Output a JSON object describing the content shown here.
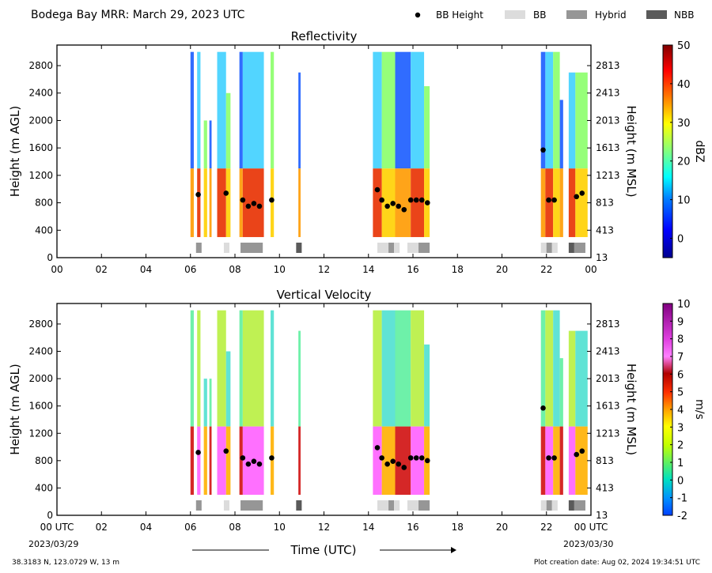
{
  "header": {
    "title": "Bodega Bay MRR:  March 29, 2023 UTC",
    "legend": [
      {
        "label": "BB Height",
        "kind": "dot",
        "color": "#000000"
      },
      {
        "label": "BB",
        "kind": "swatch",
        "color": "#dcdcdc"
      },
      {
        "label": "Hybrid",
        "kind": "swatch",
        "color": "#969696"
      },
      {
        "label": "NBB",
        "kind": "swatch",
        "color": "#5a5a5a"
      }
    ]
  },
  "footer": {
    "location": "38.3183 N, 123.0729 W, 13 m",
    "creation": "Plot creation date: Aug 02, 2024 19:34:51 UTC",
    "xtitle": "Time (UTC)",
    "date_start": "2023/03/29",
    "date_end": "2023/03/30"
  },
  "chart_data": [
    {
      "type": "heatmap",
      "title": "Reflectivity",
      "ylabel": "Height (m AGL)",
      "ylabel_right": "Height (m MSL)",
      "xlim": [
        0,
        24
      ],
      "ylim": [
        0,
        3100
      ],
      "x_ticks": [
        "00",
        "02",
        "04",
        "06",
        "08",
        "10",
        "12",
        "14",
        "16",
        "18",
        "20",
        "22",
        "00"
      ],
      "y_ticks": [
        0,
        400,
        800,
        1200,
        1600,
        2000,
        2400,
        2800
      ],
      "y_ticks_right": [
        13,
        413,
        813,
        1213,
        1613,
        2013,
        2413,
        2813
      ],
      "colorbar": {
        "label": "dBZ",
        "min": -5,
        "max": 50,
        "ticks": [
          0,
          10,
          20,
          30,
          40,
          50
        ]
      },
      "bb_height": [
        {
          "t": 6.35,
          "h": 920
        },
        {
          "t": 7.6,
          "h": 940
        },
        {
          "t": 8.35,
          "h": 840
        },
        {
          "t": 8.6,
          "h": 750
        },
        {
          "t": 8.85,
          "h": 790
        },
        {
          "t": 9.1,
          "h": 750
        },
        {
          "t": 9.65,
          "h": 840
        },
        {
          "t": 14.4,
          "h": 990
        },
        {
          "t": 14.6,
          "h": 840
        },
        {
          "t": 14.85,
          "h": 750
        },
        {
          "t": 15.1,
          "h": 790
        },
        {
          "t": 15.35,
          "h": 750
        },
        {
          "t": 15.6,
          "h": 700
        },
        {
          "t": 15.9,
          "h": 840
        },
        {
          "t": 16.15,
          "h": 840
        },
        {
          "t": 16.4,
          "h": 840
        },
        {
          "t": 16.65,
          "h": 800
        },
        {
          "t": 21.85,
          "h": 1570
        },
        {
          "t": 22.1,
          "h": 840
        },
        {
          "t": 22.35,
          "h": 840
        },
        {
          "t": 23.35,
          "h": 890
        },
        {
          "t": 23.6,
          "h": 940
        }
      ],
      "bb_type": [
        {
          "start": 6.25,
          "end": 6.5,
          "type": "Hybrid"
        },
        {
          "start": 7.5,
          "end": 7.75,
          "type": "BB"
        },
        {
          "start": 8.25,
          "end": 9.25,
          "type": "Hybrid"
        },
        {
          "start": 10.75,
          "end": 11.0,
          "type": "NBB"
        },
        {
          "start": 14.4,
          "end": 14.9,
          "type": "BB"
        },
        {
          "start": 14.9,
          "end": 15.15,
          "type": "Hybrid"
        },
        {
          "start": 15.15,
          "end": 15.4,
          "type": "BB"
        },
        {
          "start": 15.75,
          "end": 16.25,
          "type": "BB"
        },
        {
          "start": 16.25,
          "end": 16.75,
          "type": "Hybrid"
        },
        {
          "start": 21.75,
          "end": 22.0,
          "type": "BB"
        },
        {
          "start": 22.0,
          "end": 22.25,
          "type": "Hybrid"
        },
        {
          "start": 22.25,
          "end": 22.5,
          "type": "BB"
        },
        {
          "start": 23.0,
          "end": 23.25,
          "type": "NBB"
        },
        {
          "start": 23.25,
          "end": 23.75,
          "type": "Hybrid"
        }
      ]
    },
    {
      "type": "heatmap",
      "title": "Vertical Velocity",
      "ylabel": "Height (m AGL)",
      "ylabel_right": "Height (m MSL)",
      "xlim": [
        0,
        24
      ],
      "ylim": [
        0,
        3100
      ],
      "x_ticks": [
        "00 UTC",
        "02",
        "04",
        "06",
        "08",
        "10",
        "12",
        "14",
        "16",
        "18",
        "20",
        "22",
        "00 UTC"
      ],
      "y_ticks": [
        0,
        400,
        800,
        1200,
        1600,
        2000,
        2400,
        2800
      ],
      "y_ticks_right": [
        13,
        413,
        813,
        1213,
        1613,
        2013,
        2413,
        2813
      ],
      "colorbar": {
        "label": "m/s",
        "min": -2,
        "max": 10,
        "ticks": [
          -2,
          -1,
          0,
          1,
          2,
          3,
          4,
          5,
          6,
          7,
          8,
          9,
          10
        ]
      },
      "bb_height": [
        {
          "t": 6.35,
          "h": 920
        },
        {
          "t": 7.6,
          "h": 940
        },
        {
          "t": 8.35,
          "h": 840
        },
        {
          "t": 8.6,
          "h": 750
        },
        {
          "t": 8.85,
          "h": 790
        },
        {
          "t": 9.1,
          "h": 750
        },
        {
          "t": 9.65,
          "h": 840
        },
        {
          "t": 14.4,
          "h": 990
        },
        {
          "t": 14.6,
          "h": 840
        },
        {
          "t": 14.85,
          "h": 750
        },
        {
          "t": 15.1,
          "h": 790
        },
        {
          "t": 15.35,
          "h": 750
        },
        {
          "t": 15.6,
          "h": 700
        },
        {
          "t": 15.9,
          "h": 840
        },
        {
          "t": 16.15,
          "h": 840
        },
        {
          "t": 16.4,
          "h": 840
        },
        {
          "t": 16.65,
          "h": 800
        },
        {
          "t": 21.85,
          "h": 1570
        },
        {
          "t": 22.1,
          "h": 840
        },
        {
          "t": 22.35,
          "h": 840
        },
        {
          "t": 23.35,
          "h": 890
        },
        {
          "t": 23.6,
          "h": 940
        }
      ],
      "bb_type": [
        {
          "start": 6.25,
          "end": 6.5,
          "type": "Hybrid"
        },
        {
          "start": 7.5,
          "end": 7.75,
          "type": "BB"
        },
        {
          "start": 8.25,
          "end": 9.25,
          "type": "Hybrid"
        },
        {
          "start": 10.75,
          "end": 11.0,
          "type": "NBB"
        },
        {
          "start": 14.4,
          "end": 14.9,
          "type": "BB"
        },
        {
          "start": 14.9,
          "end": 15.15,
          "type": "Hybrid"
        },
        {
          "start": 15.15,
          "end": 15.4,
          "type": "BB"
        },
        {
          "start": 15.75,
          "end": 16.25,
          "type": "BB"
        },
        {
          "start": 16.25,
          "end": 16.75,
          "type": "Hybrid"
        },
        {
          "start": 21.75,
          "end": 22.0,
          "type": "BB"
        },
        {
          "start": 22.0,
          "end": 22.25,
          "type": "Hybrid"
        },
        {
          "start": 22.25,
          "end": 22.5,
          "type": "BB"
        },
        {
          "start": 23.0,
          "end": 23.25,
          "type": "NBB"
        },
        {
          "start": 23.25,
          "end": 23.75,
          "type": "Hybrid"
        }
      ]
    }
  ]
}
